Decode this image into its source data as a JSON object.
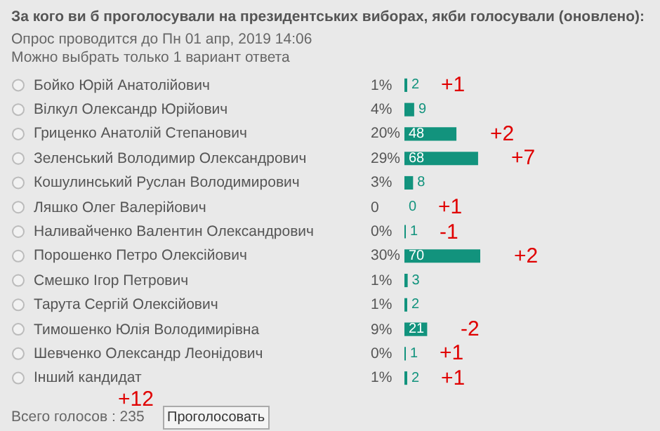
{
  "chart_data": {
    "type": "bar",
    "orientation": "horizontal",
    "title": "За кого ви б проголосували на президентських виборах, якби голосували (оновлено):",
    "subtitle": "Опрос проводится до Пн 01 апр, 2019 14:06\nМожно выбрать только 1 вариант ответа",
    "categories": [
      "Бойко Юрій Анатолійович",
      "Вілкул Олександр Юрійович",
      "Гриценко Анатолій Степанович",
      "Зеленський Володимир Олександрович",
      "Кошулинський Руслан Володимирович",
      "Ляшко Олег Валерійович",
      "Наливайченко Валентин Олександрович",
      "Порошенко Петро Олексійович",
      "Смешко Ігор Петрович",
      "Тарута Сергій Олексійович",
      "Тимошенко Юлія Володимирівна",
      "Шевченко Олександр Леонідович",
      "Інший кандидат"
    ],
    "values": [
      2,
      9,
      48,
      68,
      8,
      0,
      1,
      70,
      3,
      2,
      21,
      1,
      2
    ],
    "color": "#12937d",
    "data_labels": true,
    "legend": false,
    "grid": false,
    "annotations": [
      "Всего голосов : 235",
      "Проголосовать",
      "+12",
      "1%",
      "4%",
      "20%",
      "29%",
      "3%",
      "0",
      "0%",
      "30%",
      "1%",
      "1%",
      "9%",
      "0%",
      "1%",
      {
        "text": "+1",
        "x": 2,
        "y": "Бойко Юрій Анатолійович"
      },
      {
        "text": "+2",
        "x": 48,
        "y": "Гриценко Анатолій Степанович"
      },
      {
        "text": "+7",
        "x": 68,
        "y": "Зеленський Володимир Олександрович"
      },
      {
        "text": "+1",
        "x": 0,
        "y": "Ляшко Олег Валерійович"
      },
      {
        "text": "-1",
        "x": 1,
        "y": "Наливайченко Валентин Олександрович"
      },
      {
        "text": "+2",
        "x": 70,
        "y": "Порошенко Петро Олексійович"
      },
      {
        "text": "-2",
        "x": 21,
        "y": "Тимошенко Юлія Володимирівна"
      },
      {
        "text": "+1",
        "x": 1,
        "y": "Шевченко Олександр Леонідович"
      },
      {
        "text": "+1",
        "x": 2,
        "y": "Інший кандидат"
      }
    ]
  }
}
